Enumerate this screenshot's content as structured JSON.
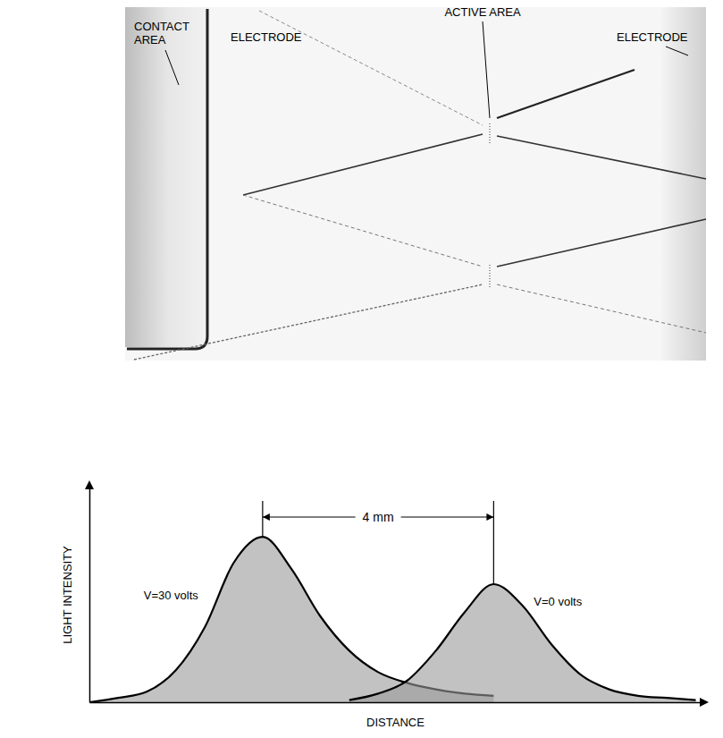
{
  "diagram": {
    "labels": [
      "CONTACT AREA",
      "ELECTRODE",
      "ACTIVE AREA",
      "ELECTRODE"
    ]
  },
  "chart_data": {
    "type": "line",
    "x_label": "DISTANCE",
    "y_label": "LIGHT INTENSITY",
    "x": [
      0,
      0.5,
      1,
      1.5,
      2,
      2.5,
      3,
      3.5,
      4,
      4.5,
      5,
      5.5,
      6,
      6.5,
      7,
      7.5,
      8,
      8.5,
      9,
      9.5,
      10,
      10.5
    ],
    "series": [
      {
        "name": "V=30 volts",
        "color": "#000000",
        "values": [
          0,
          2,
          5,
          15,
          35,
          65,
          77,
          62,
          40,
          24,
          14,
          9,
          6,
          4,
          3,
          null,
          null,
          null,
          null,
          null,
          null,
          null
        ]
      },
      {
        "name": "V=0 volts",
        "color": "#000000",
        "values": [
          null,
          null,
          null,
          null,
          null,
          null,
          null,
          null,
          null,
          1,
          4,
          10,
          24,
          42,
          55,
          45,
          27,
          13,
          6,
          3,
          2,
          1
        ]
      }
    ],
    "xlim": [
      0,
      10.6
    ],
    "ylim": [
      0,
      100
    ],
    "tick_labels": false,
    "annotations": [
      {
        "text": "4 mm",
        "x": [
          3,
          7
        ]
      }
    ]
  }
}
